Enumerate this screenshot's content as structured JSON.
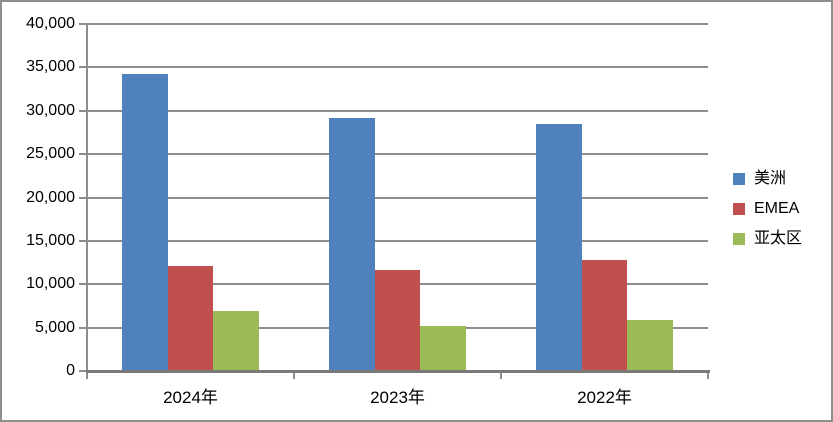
{
  "chart_data": {
    "type": "bar",
    "title": "",
    "xlabel": "",
    "ylabel": "",
    "categories": [
      "2024年",
      "2023年",
      "2022年"
    ],
    "series": [
      {
        "id": "americas",
        "name": "美洲",
        "color": "#4F81BD",
        "values": [
          34200,
          29200,
          28500
        ]
      },
      {
        "id": "emea",
        "name": "EMEA",
        "color": "#C0504D",
        "values": [
          12100,
          11700,
          12800
        ]
      },
      {
        "id": "apac",
        "name": "亚太区",
        "color": "#9BBB59",
        "values": [
          6900,
          5200,
          5900
        ]
      }
    ],
    "ylim": [
      0,
      40000
    ],
    "ytick_interval": 5000,
    "ytick_labels": [
      "0",
      "5,000",
      "10,000",
      "15,000",
      "20,000",
      "25,000",
      "30,000",
      "35,000",
      "40,000"
    ],
    "grid": true,
    "legend_position": "right",
    "colors": {
      "gridline": "#8D8D8D",
      "axis": "#7A7A7A",
      "background": "#FFFFFF",
      "frame_border": "#8E8E8E",
      "text": "#000000"
    }
  }
}
